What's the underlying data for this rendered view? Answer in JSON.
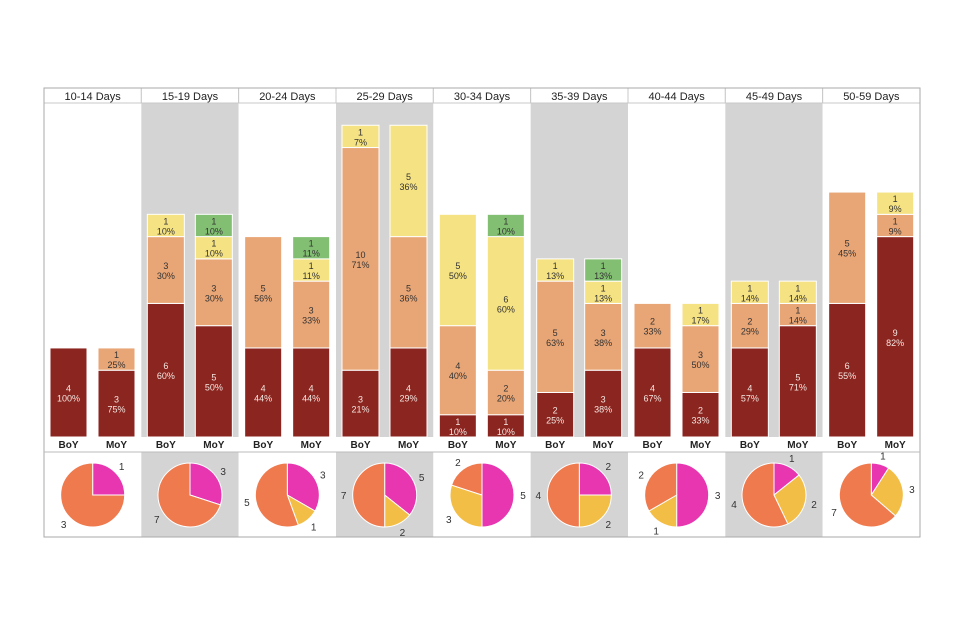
{
  "chart_data": {
    "type": "bar",
    "stacked": true,
    "panels": [
      {
        "title": "10-14 Days",
        "bars": [
          {
            "label": "BoY",
            "values": [
              4,
              0,
              0,
              0
            ],
            "pct": [
              "100%",
              "",
              "",
              ""
            ]
          },
          {
            "label": "MoY",
            "values": [
              3,
              1,
              0,
              0
            ],
            "pct": [
              "75%",
              "25%",
              "",
              ""
            ]
          }
        ],
        "pie": [
          1,
          0,
          3
        ]
      },
      {
        "title": "15-19 Days",
        "bars": [
          {
            "label": "BoY",
            "values": [
              6,
              3,
              1,
              0
            ],
            "pct": [
              "60%",
              "30%",
              "10%",
              ""
            ]
          },
          {
            "label": "MoY",
            "values": [
              5,
              3,
              1,
              1
            ],
            "pct": [
              "50%",
              "30%",
              "10%",
              "10%"
            ]
          }
        ],
        "pie": [
          3,
          0,
          7
        ]
      },
      {
        "title": "20-24 Days",
        "bars": [
          {
            "label": "BoY",
            "values": [
              4,
              5,
              0,
              0
            ],
            "pct": [
              "44%",
              "56%",
              "",
              ""
            ]
          },
          {
            "label": "MoY",
            "values": [
              4,
              3,
              1,
              1
            ],
            "pct": [
              "44%",
              "33%",
              "11%",
              "11%"
            ]
          }
        ],
        "pie": [
          3,
          1,
          5
        ]
      },
      {
        "title": "25-29 Days",
        "bars": [
          {
            "label": "BoY",
            "values": [
              3,
              10,
              1,
              0
            ],
            "pct": [
              "21%",
              "71%",
              "7%",
              ""
            ]
          },
          {
            "label": "MoY",
            "values": [
              4,
              5,
              5,
              0
            ],
            "pct": [
              "29%",
              "36%",
              "36%",
              ""
            ]
          }
        ],
        "pie": [
          5,
          2,
          7
        ]
      },
      {
        "title": "30-34 Days",
        "bars": [
          {
            "label": "BoY",
            "values": [
              1,
              4,
              5,
              0
            ],
            "pct": [
              "10%",
              "40%",
              "50%",
              ""
            ]
          },
          {
            "label": "MoY",
            "values": [
              1,
              2,
              6,
              1
            ],
            "pct": [
              "10%",
              "20%",
              "60%",
              "10%"
            ]
          }
        ],
        "pie": [
          5,
          3,
          2
        ]
      },
      {
        "title": "35-39 Days",
        "bars": [
          {
            "label": "BoY",
            "values": [
              2,
              5,
              1,
              0
            ],
            "pct": [
              "25%",
              "63%",
              "13%",
              ""
            ]
          },
          {
            "label": "MoY",
            "values": [
              3,
              3,
              1,
              1
            ],
            "pct": [
              "38%",
              "38%",
              "13%",
              "13%"
            ]
          }
        ],
        "pie": [
          2,
          2,
          4
        ]
      },
      {
        "title": "40-44 Days",
        "bars": [
          {
            "label": "BoY",
            "values": [
              4,
              2,
              0,
              0
            ],
            "pct": [
              "67%",
              "33%",
              "",
              ""
            ]
          },
          {
            "label": "MoY",
            "values": [
              2,
              3,
              1,
              0
            ],
            "pct": [
              "33%",
              "50%",
              "17%",
              ""
            ]
          }
        ],
        "pie": [
          3,
          1,
          2
        ]
      },
      {
        "title": "45-49 Days",
        "bars": [
          {
            "label": "BoY",
            "values": [
              4,
              2,
              1,
              0
            ],
            "pct": [
              "57%",
              "29%",
              "14%",
              ""
            ]
          },
          {
            "label": "MoY",
            "values": [
              5,
              1,
              1,
              0
            ],
            "pct": [
              "71%",
              "14%",
              "14%",
              ""
            ]
          }
        ],
        "pie": [
          1,
          2,
          4
        ]
      },
      {
        "title": "50-59 Days",
        "bars": [
          {
            "label": "BoY",
            "values": [
              6,
              5,
              0,
              0
            ],
            "pct": [
              "55%",
              "45%",
              "",
              ""
            ]
          },
          {
            "label": "MoY",
            "values": [
              9,
              1,
              1,
              0
            ],
            "pct": [
              "82%",
              "9%",
              "9%",
              ""
            ]
          }
        ],
        "pie": [
          1,
          3,
          7
        ]
      }
    ],
    "ylim": [
      0,
      15
    ],
    "grid": false,
    "stack_colors": [
      "#8b2520",
      "#e8a575",
      "#f5e283",
      "#82bf72"
    ],
    "pie_type": "pie",
    "pie_colors": [
      "#e835b0",
      "#f3be46",
      "#ee7a4e"
    ],
    "panel_background_alternate": "#d4d4d4"
  }
}
